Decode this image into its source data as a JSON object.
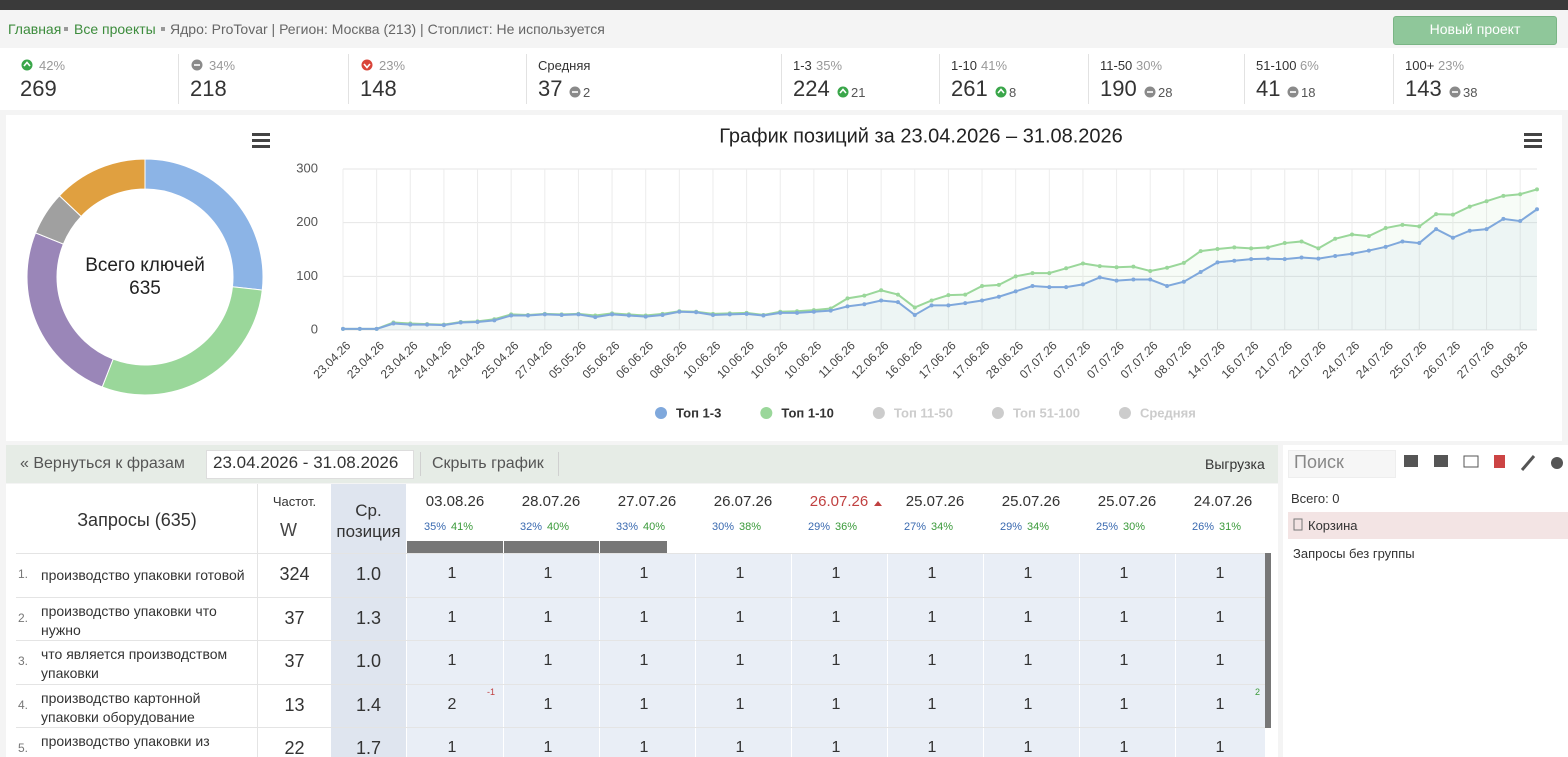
{
  "breadcrumb": {
    "links": [
      "Главная",
      "Все проекты"
    ],
    "info": "Ядро: ProTovar | Регион: Москва (213) | Стоплист: Не используется",
    "button": "Новый проект"
  },
  "stats": [
    {
      "icon": "up",
      "pct": "42%",
      "value": 269
    },
    {
      "icon": "neutral",
      "pct": "34%",
      "value": 218
    },
    {
      "icon": "down",
      "pct": "23%",
      "value": 148
    },
    {
      "label": "Средняя",
      "value": 37,
      "delta": 2,
      "delta_icon": "neutral"
    },
    {
      "label": "1-3",
      "pct": "35%",
      "value": 224,
      "delta": 21,
      "delta_icon": "up"
    },
    {
      "label": "1-10",
      "pct": "41%",
      "value": 261,
      "delta": 8,
      "delta_icon": "up"
    },
    {
      "label": "11-50",
      "pct": "30%",
      "value": 190,
      "delta": 28,
      "delta_icon": "neutral"
    },
    {
      "label": "51-100",
      "pct": "6%",
      "value": 41,
      "delta": 18,
      "delta_icon": "neutral"
    },
    {
      "label": "100+",
      "pct": "23%",
      "value": 143,
      "delta": 38,
      "delta_icon": "neutral"
    }
  ],
  "chart_data": [
    {
      "type": "donut",
      "center_label": "Всего ключей",
      "total": 635,
      "values": [
        170,
        185,
        160,
        38,
        82
      ],
      "colors": [
        "#8cb4e6",
        "#9ad79a",
        "#9a86b8",
        "#a0a0a0",
        "#e0a040"
      ]
    },
    {
      "type": "line",
      "title": "График позиций за 23.04.2026 – 31.08.2026",
      "categories": [
        "23.04.26",
        null,
        "23.04.26",
        null,
        "23.04.26",
        null,
        "24.04.26",
        null,
        "24.04.26",
        null,
        "25.04.26",
        null,
        "27.04.26",
        null,
        "05.05.26",
        null,
        "05.06.26",
        null,
        "06.06.26",
        null,
        "08.06.26",
        null,
        "10.06.26",
        null,
        "10.06.26",
        null,
        "10.06.26",
        null,
        "10.06.26",
        null,
        "11.06.26",
        null,
        "12.06.26",
        null,
        "16.06.26",
        null,
        "17.06.26",
        null,
        "17.06.26",
        null,
        "28.06.26",
        null,
        "07.07.26",
        null,
        "07.07.26",
        null,
        "07.07.26",
        null,
        "07.07.26",
        null,
        "08.07.26",
        null,
        "14.07.26",
        null,
        "16.07.26",
        null,
        "21.07.26",
        null,
        "21.07.26",
        null,
        "24.07.26",
        null,
        "24.07.26",
        null,
        "25.07.26",
        null,
        "26.07.26",
        null,
        "27.07.26",
        null,
        "03.08.26",
        null
      ],
      "series": [
        {
          "name": "Топ 1-3",
          "color": "#7fa8dc",
          "values": [
            2,
            2,
            2,
            12,
            10,
            10,
            9,
            14,
            15,
            18,
            27,
            27,
            29,
            28,
            29,
            24,
            29,
            27,
            25,
            28,
            34,
            33,
            28,
            29,
            30,
            27,
            32,
            32,
            34,
            36,
            44,
            48,
            55,
            52,
            28,
            46,
            46,
            50,
            55,
            62,
            72,
            82,
            80,
            80,
            85,
            98,
            92,
            94,
            94,
            82,
            90,
            108,
            126,
            129,
            132,
            133,
            132,
            135,
            133,
            138,
            142,
            148,
            155,
            165,
            162,
            188,
            172,
            185,
            188,
            207,
            203,
            225
          ]
        },
        {
          "name": "Топ 1-10",
          "color": "#9ad79a",
          "values": [
            2,
            2,
            2,
            14,
            12,
            11,
            10,
            15,
            16,
            20,
            29,
            28,
            30,
            29,
            30,
            27,
            31,
            29,
            27,
            30,
            35,
            34,
            30,
            31,
            32,
            28,
            34,
            35,
            37,
            40,
            59,
            64,
            74,
            66,
            42,
            55,
            65,
            66,
            82,
            84,
            100,
            106,
            106,
            115,
            124,
            119,
            117,
            118,
            110,
            116,
            125,
            147,
            151,
            154,
            152,
            154,
            162,
            165,
            152,
            170,
            178,
            175,
            190,
            196,
            193,
            216,
            215,
            230,
            240,
            250,
            253,
            262
          ]
        }
      ],
      "hidden_series": [
        "Топ 11-50",
        "Топ 51-100",
        "Средняя"
      ],
      "ylim": [
        0,
        300
      ],
      "yticks": [
        0,
        100,
        200,
        300
      ],
      "grid": true
    }
  ],
  "toolbar": {
    "back": "« Вернуться к фразам",
    "date_range": "23.04.2026 - 31.08.2026",
    "hide_chart": "Скрыть график",
    "export": "Выгрузка"
  },
  "sidebar": {
    "search": "Поиск",
    "total": "Всего: 0",
    "trash": "Корзина",
    "no_group": "Запросы без группы"
  },
  "table": {
    "header": {
      "queries": "Запросы (635)",
      "freq": "Частот.",
      "freq_type": "W",
      "avg": "Ср. позиция"
    },
    "dates": [
      {
        "date": "03.08.26",
        "p1": "35%",
        "p2": "41%"
      },
      {
        "date": "28.07.26",
        "p1": "32%",
        "p2": "40%"
      },
      {
        "date": "27.07.26",
        "p1": "33%",
        "p2": "40%"
      },
      {
        "date": "26.07.26",
        "p1": "30%",
        "p2": "38%"
      },
      {
        "date": "26.07.26",
        "p1": "29%",
        "p2": "36%",
        "highlight": true
      },
      {
        "date": "25.07.26",
        "p1": "27%",
        "p2": "34%"
      },
      {
        "date": "25.07.26",
        "p1": "29%",
        "p2": "34%"
      },
      {
        "date": "25.07.26",
        "p1": "25%",
        "p2": "30%"
      },
      {
        "date": "24.07.26",
        "p1": "26%",
        "p2": "31%"
      }
    ],
    "rows": [
      {
        "n": "1.",
        "query": "производство упаковки готовой",
        "freq": 324,
        "avg": "1.0",
        "positions": [
          1,
          1,
          1,
          1,
          1,
          1,
          1,
          1,
          1
        ],
        "changes": [
          null,
          null,
          null,
          null,
          null,
          null,
          null,
          null,
          null
        ]
      },
      {
        "n": "2.",
        "query": "производство упаковки что нужно",
        "freq": 37,
        "avg": "1.3",
        "positions": [
          1,
          1,
          1,
          1,
          1,
          1,
          1,
          1,
          1
        ],
        "changes": [
          null,
          null,
          null,
          null,
          null,
          null,
          null,
          null,
          null
        ]
      },
      {
        "n": "3.",
        "query": "что является производством упаковки",
        "freq": 37,
        "avg": "1.0",
        "positions": [
          1,
          1,
          1,
          1,
          1,
          1,
          1,
          1,
          1
        ],
        "changes": [
          null,
          null,
          null,
          null,
          null,
          null,
          null,
          null,
          null
        ]
      },
      {
        "n": "4.",
        "query": "производство картонной упаковки оборудование",
        "freq": 13,
        "avg": "1.4",
        "positions": [
          2,
          1,
          1,
          1,
          1,
          1,
          1,
          1,
          1
        ],
        "changes": [
          -1,
          null,
          null,
          null,
          null,
          null,
          null,
          null,
          2
        ]
      },
      {
        "n": "5.",
        "query": "производство упаковки из",
        "freq": 22,
        "avg": "1.7",
        "positions": [
          1,
          1,
          1,
          1,
          1,
          1,
          1,
          1,
          1
        ],
        "changes": [
          null,
          null,
          null,
          null,
          null,
          null,
          null,
          null,
          null
        ]
      }
    ]
  }
}
